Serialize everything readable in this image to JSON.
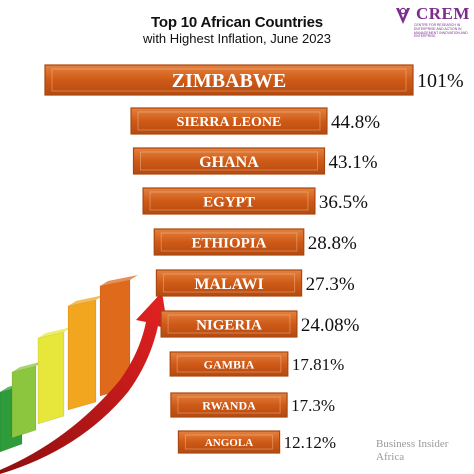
{
  "header": {
    "title": "Top 10 African Countries",
    "subtitle": "with Highest Inflation, June 2023"
  },
  "logo": {
    "name": "CREM",
    "tagline": "Centre for Research in Enterprise and Action in Management",
    "tagline2": "Innovation and Enterprise",
    "color": "#7b2d8e"
  },
  "source": {
    "line1": "Business Insider",
    "line2": "Africa"
  },
  "chart_data": {
    "type": "bar",
    "orientation": "horizontal",
    "title": "Top 10 African Countries",
    "subtitle": "with Highest Inflation, June 2023",
    "categories": [
      "ZIMBABWE",
      "SIERRA LEONE",
      "GHANA",
      "EGYPT",
      "ETHIOPIA",
      "MALAWI",
      "NIGERIA",
      "GAMBIA",
      "RWANDA",
      "ANGOLA"
    ],
    "values": [
      101,
      44.8,
      43.1,
      36.5,
      28.8,
      27.3,
      24.08,
      17.81,
      17.3,
      12.12
    ],
    "value_labels": [
      "101%",
      "44.8%",
      "43.1%",
      "36.5%",
      "28.8%",
      "27.3%",
      "24.08%",
      "17.81%",
      "17.3%",
      "12.12%"
    ],
    "bar_color": "#d7621f",
    "bar_border_color": "#a8470f",
    "decoration_colors": [
      "#2e9c3a",
      "#8cc63e",
      "#e7e63a",
      "#f2a51e",
      "#e06a1b",
      "#d41f1f"
    ]
  }
}
